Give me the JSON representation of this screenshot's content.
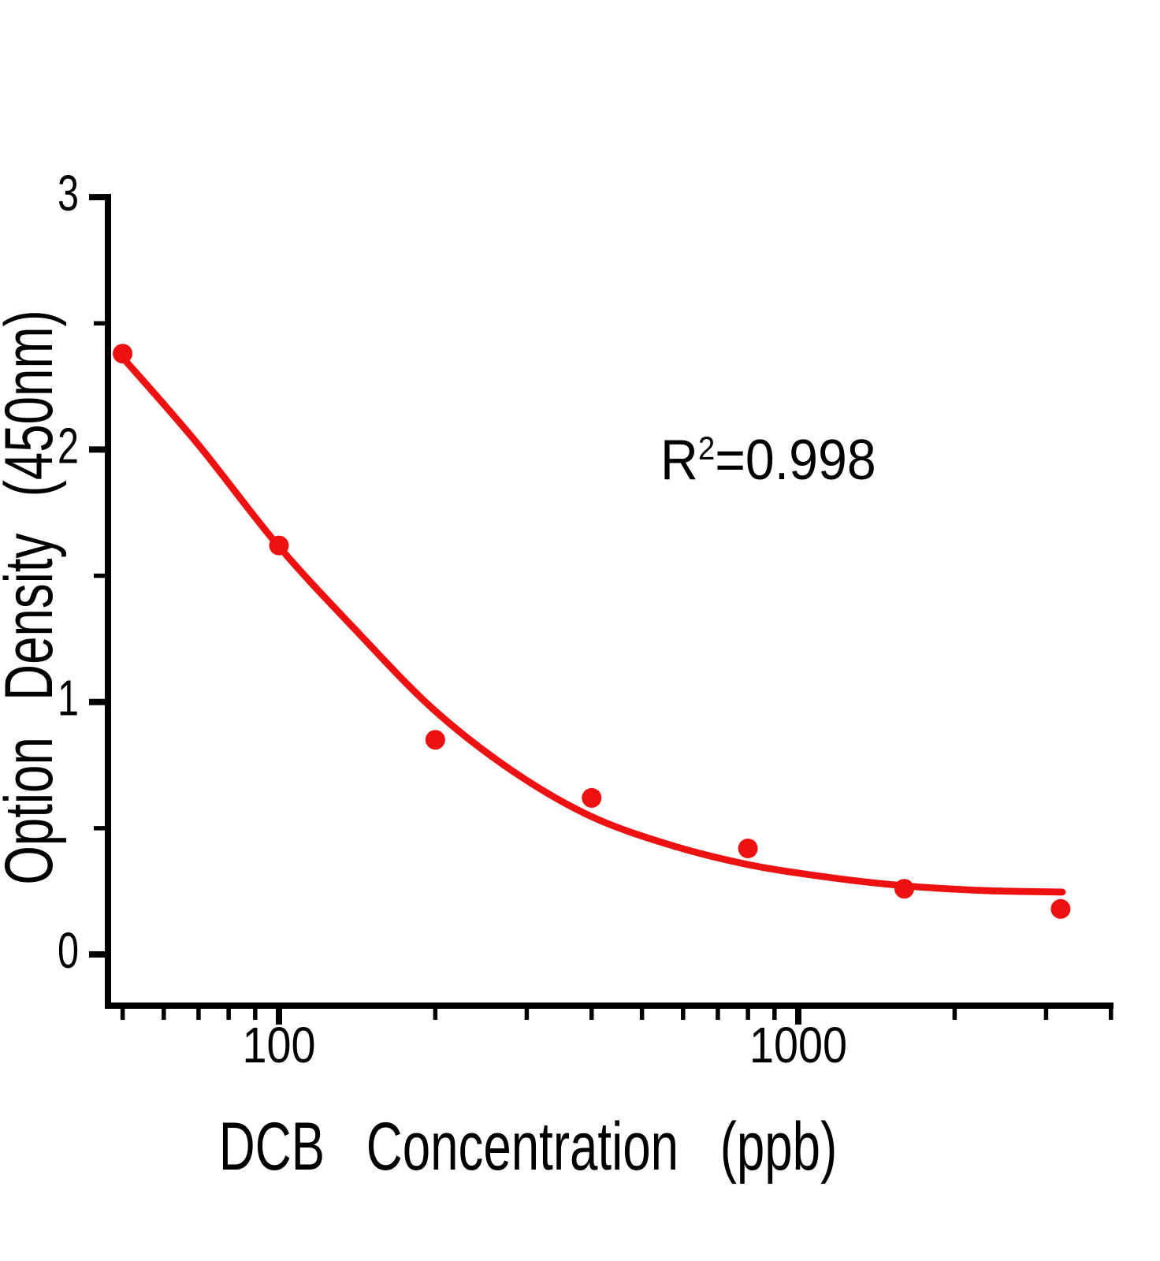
{
  "page": {
    "background": "#ffffff"
  },
  "chart_data": {
    "type": "scatter",
    "title": "",
    "xlabel": "DCB Concentration (ppb)",
    "ylabel": "Option Density (450nm)",
    "annotation": {
      "base": "R",
      "sup": "2",
      "rest": "=0.998"
    },
    "x_scale": "log",
    "x_axis": {
      "label": "DCB Concentration (ppb)",
      "range": [
        46.5,
        4030
      ],
      "major_ticks": [
        100,
        1000
      ],
      "minor_ticks": [
        50,
        60,
        70,
        80,
        90,
        200,
        300,
        400,
        500,
        600,
        700,
        800,
        900,
        2000,
        3000,
        4000
      ]
    },
    "y_axis": {
      "label": "Option Density (450nm)",
      "range": [
        -0.2,
        3
      ],
      "major_ticks": [
        0,
        1,
        2,
        3
      ],
      "minor_ticks": [
        0.5,
        1.5,
        2.5
      ]
    },
    "series": [
      {
        "name": "standard-points",
        "marker": "circle",
        "color": "#ee1111",
        "points": [
          [
            50,
            2.38
          ],
          [
            100,
            1.62
          ],
          [
            200,
            0.85
          ],
          [
            400,
            0.62
          ],
          [
            800,
            0.42
          ],
          [
            1600,
            0.26
          ],
          [
            3200,
            0.18
          ]
        ]
      }
    ],
    "fit_curve": {
      "name": "4pl-fit-line",
      "color": "#ee1111",
      "r_squared": 0.998,
      "points": [
        [
          49.5,
          2.375
        ],
        [
          69.5,
          2.026
        ],
        [
          99.3,
          1.623
        ],
        [
          139.9,
          1.289
        ],
        [
          198.3,
          0.971
        ],
        [
          281,
          0.728
        ],
        [
          397,
          0.549
        ],
        [
          566,
          0.434
        ],
        [
          800,
          0.356
        ],
        [
          1138,
          0.306
        ],
        [
          1598,
          0.272
        ],
        [
          2289,
          0.253
        ],
        [
          3225,
          0.247
        ]
      ]
    },
    "colors": {
      "data": "#ee1111",
      "axis": "#000000",
      "text": "#000000"
    },
    "legend": "none",
    "grid": "off"
  }
}
